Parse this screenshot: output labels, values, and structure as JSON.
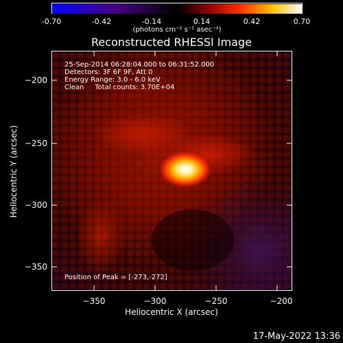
{
  "colorbar": {
    "tick_labels": [
      "-0.70",
      "-0.42",
      "-0.14",
      "0.14",
      "0.42",
      "0.70"
    ],
    "units": "(photons cm⁻² s⁻¹ asec⁻²)",
    "range": [
      -0.7,
      0.7
    ],
    "colors": [
      "#0000ff",
      "#4b0082",
      "#000000",
      "#8b0000",
      "#ff4500",
      "#ffd700",
      "#ffffff"
    ]
  },
  "title": "Reconstructed RHESSI Image",
  "annotations": {
    "line1": "25-Sep-2014 06:28:04.000 to 06:31:52.000",
    "line2": "Detectors: 3F 6F 9F, Att 0",
    "line3": "Energy Range: 3.0 - 6.0 keV",
    "line4": "Clean     Total counts: 3.70E+04",
    "peak": "Position of Peak = [-273,-272]"
  },
  "footer_date": "17-May-2022 13:36",
  "chart_data": {
    "type": "heatmap",
    "title": "Reconstructed RHESSI Image",
    "xlabel": "Heliocentric X (arcsec)",
    "ylabel": "Heliocentric Y (arcsec)",
    "xlim": [
      -385,
      -188
    ],
    "ylim": [
      -372,
      -178
    ],
    "x_ticks": [
      -350,
      -300,
      -250,
      -200
    ],
    "y_ticks": [
      -200,
      -250,
      -300,
      -350
    ],
    "x_tick_labels": [
      "−350",
      "−300",
      "−250",
      "−200"
    ],
    "y_tick_labels": [
      "−200",
      "−250",
      "−300",
      "−350"
    ],
    "peak_position": [
      -273,
      -272
    ],
    "colorbar_range": [
      -0.7,
      0.7
    ]
  }
}
